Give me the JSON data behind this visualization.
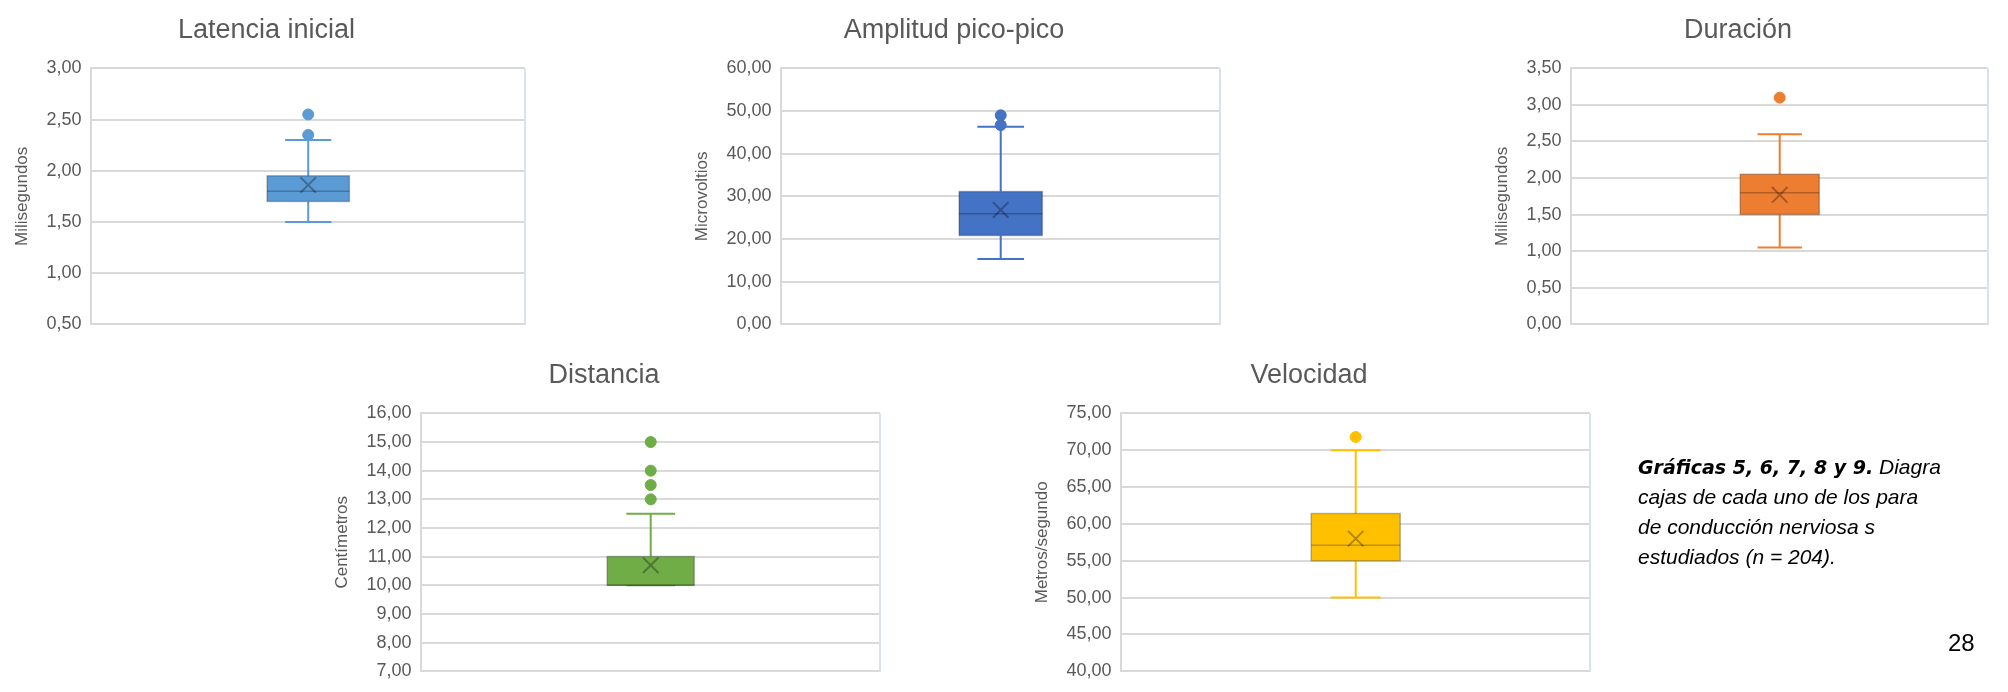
{
  "chart_data": [
    {
      "type": "box",
      "title": "Latencia inicial",
      "ylabel": "Milisegundos",
      "categories": [
        null
      ],
      "grid": "y",
      "marker": "circle",
      "series": [
        {
          "color": "#5b9bd5",
          "boxes": [
            {
              "low": 1.5,
              "q1": 1.7,
              "median": 1.8,
              "q3": 1.95,
              "high": 2.3,
              "mean": 1.86,
              "outliers": [
                2.35,
                2.55
              ]
            }
          ]
        }
      ],
      "ylim": [
        0.5,
        3
      ],
      "yticks": [
        {
          "value": 0.5,
          "label": "0,50"
        },
        {
          "value": 1,
          "label": "1,00"
        },
        {
          "value": 1.5,
          "label": "1,50"
        },
        {
          "value": 2,
          "label": "2,00"
        },
        {
          "value": 2.5,
          "label": "2,50"
        },
        {
          "value": 3,
          "label": "3,00"
        }
      ],
      "tick_labels": "y"
    },
    {
      "type": "box",
      "title": "Amplitud pico-pico",
      "ylabel": "Microvoltios",
      "categories": [
        null
      ],
      "grid": "y",
      "marker": "circle",
      "series": [
        {
          "color": "#4472c4",
          "boxes": [
            {
              "low": 15.3,
              "q1": 20.8,
              "median": 25.9,
              "q3": 31.1,
              "high": 46.3,
              "mean": 26.8,
              "outliers": [
                46.7,
                49
              ]
            }
          ]
        }
      ],
      "ylim": [
        0,
        60
      ],
      "yticks": [
        {
          "value": 0,
          "label": "0,00"
        },
        {
          "value": 10,
          "label": "10,00"
        },
        {
          "value": 20,
          "label": "20,00"
        },
        {
          "value": 30,
          "label": "30,00"
        },
        {
          "value": 40,
          "label": "40,00"
        },
        {
          "value": 50,
          "label": "50,00"
        },
        {
          "value": 60,
          "label": "60,00"
        }
      ],
      "tick_labels": "y"
    },
    {
      "type": "box",
      "title": "Duración",
      "ylabel": "Milisegundos",
      "categories": [
        null
      ],
      "grid": "y",
      "marker": "circle",
      "series": [
        {
          "color": "#ed7d31",
          "boxes": [
            {
              "low": 1.05,
              "q1": 1.5,
              "median": 1.8,
              "q3": 2.05,
              "high": 2.6,
              "mean": 1.77,
              "outliers": [
                3.1
              ]
            }
          ]
        }
      ],
      "ylim": [
        0,
        3.5
      ],
      "yticks": [
        {
          "value": 0,
          "label": "0,00"
        },
        {
          "value": 0.5,
          "label": "0,50"
        },
        {
          "value": 1,
          "label": "1,00"
        },
        {
          "value": 1.5,
          "label": "1,50"
        },
        {
          "value": 2,
          "label": "2,00"
        },
        {
          "value": 2.5,
          "label": "2,50"
        },
        {
          "value": 3,
          "label": "3,00"
        },
        {
          "value": 3.5,
          "label": "3,50"
        }
      ],
      "tick_labels": "y"
    },
    {
      "type": "box",
      "title": "Distancia",
      "ylabel": "Centímetros",
      "categories": [
        null
      ],
      "grid": "y",
      "marker": "circle",
      "series": [
        {
          "color": "#70ad47",
          "boxes": [
            {
              "low": 10,
              "q1": 10,
              "median": 10,
              "q3": 11,
              "high": 12.5,
              "mean": 10.7,
              "outliers": [
                13,
                13.5,
                14,
                15
              ]
            }
          ]
        }
      ],
      "ylim": [
        7,
        16
      ],
      "yticks": [
        {
          "value": 7,
          "label": "7,00"
        },
        {
          "value": 8,
          "label": "8,00"
        },
        {
          "value": 9,
          "label": "9,00"
        },
        {
          "value": 10,
          "label": "10,00"
        },
        {
          "value": 11,
          "label": "11,00"
        },
        {
          "value": 12,
          "label": "12,00"
        },
        {
          "value": 13,
          "label": "13,00"
        },
        {
          "value": 14,
          "label": "14,00"
        },
        {
          "value": 15,
          "label": "15,00"
        },
        {
          "value": 16,
          "label": "16,00"
        }
      ],
      "tick_labels": "y"
    },
    {
      "type": "box",
      "title": "Velocidad",
      "ylabel": "Metros/segundo",
      "categories": [
        null
      ],
      "grid": "y",
      "marker": "circle",
      "series": [
        {
          "color": "#ffc000",
          "boxes": [
            {
              "low": 50,
              "q1": 55,
              "median": 57.1,
              "q3": 61.4,
              "high": 70,
              "mean": 58,
              "outliers": [
                71.8
              ]
            }
          ]
        }
      ],
      "ylim": [
        40,
        75
      ],
      "yticks": [
        {
          "value": 40,
          "label": "40,00"
        },
        {
          "value": 45,
          "label": "45,00"
        },
        {
          "value": 50,
          "label": "50,00"
        },
        {
          "value": 55,
          "label": "55,00"
        },
        {
          "value": 60,
          "label": "60,00"
        },
        {
          "value": 65,
          "label": "65,00"
        },
        {
          "value": 70,
          "label": "70,00"
        },
        {
          "value": 75,
          "label": "75,00"
        }
      ],
      "tick_labels": "y"
    },
    {
      "type": "other",
      "annotations": [
        "Gráficas 5, 6, 7, 8 y 9.",
        "Diagra",
        "cajas de cada uno de los para",
        "de conducción nerviosa s",
        "estudiados (n = 204).",
        "28"
      ]
    }
  ]
}
